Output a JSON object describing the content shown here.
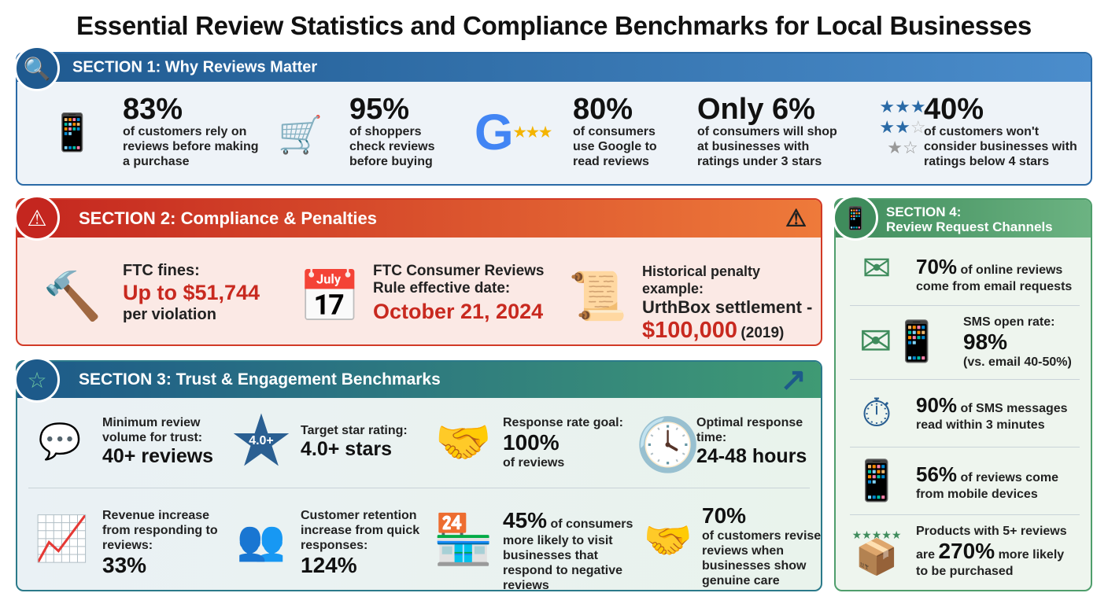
{
  "title": "Essential Review Statistics and Compliance Benchmarks for Local Businesses",
  "colors": {
    "section1": "#2a6aa6",
    "section2": "#d23a26",
    "section3": "#2b7a8a",
    "section4": "#4f9e6c",
    "penalty_red": "#c8291f"
  },
  "section1": {
    "title": "SECTION 1: Why Reviews Matter",
    "icon": "search-icon",
    "stats": [
      {
        "value": "83%",
        "text": "of customers rely on reviews before making a purchase",
        "icon": "person-phone-review-icon"
      },
      {
        "value": "95%",
        "text": "of shoppers check reviews before buying",
        "icon": "shopping-cart-check-icon"
      },
      {
        "value": "80%",
        "text": "of consumers use Google to read reviews",
        "icon": "google-review-icon"
      },
      {
        "value": "Only 6%",
        "text": "of consumers will shop at businesses with ratings under 3 stars",
        "icon": "none"
      },
      {
        "value": "40%",
        "text": "of customers won't consider businesses with ratings below 4 stars",
        "icon": "star-ratings-icon"
      }
    ]
  },
  "section2": {
    "title": "SECTION 2: Compliance & Penalties",
    "icon": "shield-alert-icon",
    "warning_icon": "warning-icon",
    "items": [
      {
        "label": "FTC fines:",
        "value": "Up to $51,744",
        "suffix": "per violation",
        "icon": "gavel-icon"
      },
      {
        "label": "FTC Consumer Reviews Rule effective date:",
        "value": "October 21, 2024",
        "icon": "calendar-icon"
      },
      {
        "label": "Historical penalty example:",
        "sublabel": "UrthBox settlement -",
        "value": "$100,000",
        "suffix": "(2019)",
        "icon": "broken-chain-document-icon"
      }
    ]
  },
  "section3": {
    "title": "SECTION 3: Trust & Engagement Benchmarks",
    "icon": "star-icon",
    "items": [
      {
        "label": "Minimum review volume for trust:",
        "value": "40+ reviews",
        "icon": "review-chat-icon"
      },
      {
        "label": "Target star rating:",
        "value": "4.0+ stars",
        "badge": "4.0+",
        "icon": "star-icon"
      },
      {
        "label": "Response rate goal:",
        "value": "100%",
        "suffix": "of reviews",
        "icon": "handshake-check-icon"
      },
      {
        "label": "Optimal response time:",
        "value": "24-48 hours",
        "icon": "clock-icon"
      },
      {
        "label": "Revenue increase from responding to reviews:",
        "value": "33%",
        "icon": "revenue-chart-icon"
      },
      {
        "label": "Customer retention increase from quick responses:",
        "value": "124%",
        "icon": "user-cycle-icon"
      },
      {
        "value": "45%",
        "text": "of consumers",
        "suffix": "more likely to visit businesses that respond to negative reviews",
        "icon": "storefront-icon"
      },
      {
        "value": "70%",
        "suffix": "of customers revise reviews when businesses show genuine care",
        "icon": "heart-handshake-icon"
      }
    ]
  },
  "section4": {
    "title_line1": "SECTION 4:",
    "title_line2": "Review Request Channels",
    "icon": "phone-chat-icon",
    "items": [
      {
        "value": "70%",
        "text": "of online reviews",
        "suffix": "come from email requests",
        "icon": "email-send-icon"
      },
      {
        "label": "SMS open rate:",
        "value": "98%",
        "suffix": "(vs. email 40-50%)",
        "icon": "email-sms-icon"
      },
      {
        "value": "90%",
        "text": "of SMS messages",
        "suffix": "read within 3 minutes",
        "icon": "stopwatch-chat-icon"
      },
      {
        "value": "56%",
        "text": "of reviews come",
        "suffix": "from mobile devices",
        "icon": "hand-phone-icon"
      },
      {
        "label": "Products with 5+ reviews",
        "prefix": "are",
        "value": "270%",
        "text": "more likely",
        "suffix": "to be purchased",
        "icon": "package-up-icon"
      }
    ]
  }
}
